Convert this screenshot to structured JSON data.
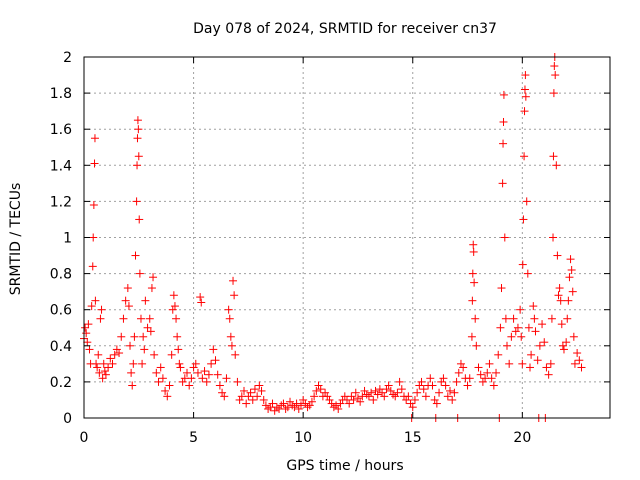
{
  "chart_data": {
    "type": "scatter",
    "title": "Day 078 of 2024, SRMTID for receiver cn37",
    "xlabel": "GPS time / hours",
    "ylabel": "SRMTID / TECUs",
    "xlim": [
      0,
      24
    ],
    "ylim": [
      0,
      2
    ],
    "x_ticks": [
      0,
      5,
      10,
      15,
      20
    ],
    "x_tick_labels": [
      "0",
      "5",
      "10",
      "15",
      "20"
    ],
    "y_ticks": [
      0,
      0.2,
      0.4,
      0.6,
      0.8,
      1.0,
      1.2,
      1.4,
      1.6,
      1.8,
      2.0
    ],
    "y_tick_labels": [
      "0",
      "0.2",
      "0.4",
      "0.6",
      "0.8",
      "1",
      "1.2",
      "1.4",
      "1.6",
      "1.8",
      "2"
    ],
    "grid": true,
    "marker": "+",
    "series": [
      {
        "name": "SRMTID",
        "color": "#ff0000",
        "points": [
          [
            0.0,
            0.44
          ],
          [
            0.05,
            0.5
          ],
          [
            0.1,
            0.47
          ],
          [
            0.15,
            0.42
          ],
          [
            0.2,
            0.52
          ],
          [
            0.25,
            0.38
          ],
          [
            0.3,
            0.3
          ],
          [
            0.35,
            0.62
          ],
          [
            0.4,
            0.84
          ],
          [
            0.42,
            1.0
          ],
          [
            0.45,
            1.18
          ],
          [
            0.48,
            1.41
          ],
          [
            0.5,
            1.55
          ],
          [
            0.52,
            0.65
          ],
          [
            0.55,
            0.3
          ],
          [
            0.6,
            0.28
          ],
          [
            0.65,
            0.35
          ],
          [
            0.7,
            0.25
          ],
          [
            0.75,
            0.55
          ],
          [
            0.8,
            0.6
          ],
          [
            0.85,
            0.22
          ],
          [
            0.9,
            0.3
          ],
          [
            0.95,
            0.26
          ],
          [
            1.0,
            0.24
          ],
          [
            1.1,
            0.28
          ],
          [
            1.2,
            0.33
          ],
          [
            1.3,
            0.3
          ],
          [
            1.4,
            0.35
          ],
          [
            1.5,
            0.38
          ],
          [
            1.6,
            0.36
          ],
          [
            1.7,
            0.45
          ],
          [
            1.8,
            0.55
          ],
          [
            1.9,
            0.65
          ],
          [
            2.0,
            0.72
          ],
          [
            2.05,
            0.62
          ],
          [
            2.1,
            0.4
          ],
          [
            2.15,
            0.25
          ],
          [
            2.2,
            0.18
          ],
          [
            2.25,
            0.3
          ],
          [
            2.3,
            0.45
          ],
          [
            2.35,
            0.9
          ],
          [
            2.4,
            1.2
          ],
          [
            2.42,
            1.4
          ],
          [
            2.44,
            1.55
          ],
          [
            2.46,
            1.65
          ],
          [
            2.48,
            1.6
          ],
          [
            2.5,
            1.45
          ],
          [
            2.52,
            1.1
          ],
          [
            2.55,
            0.8
          ],
          [
            2.6,
            0.55
          ],
          [
            2.65,
            0.3
          ],
          [
            2.7,
            0.45
          ],
          [
            2.75,
            0.38
          ],
          [
            2.8,
            0.65
          ],
          [
            2.9,
            0.5
          ],
          [
            3.0,
            0.55
          ],
          [
            3.05,
            0.48
          ],
          [
            3.1,
            0.72
          ],
          [
            3.15,
            0.78
          ],
          [
            3.2,
            0.35
          ],
          [
            3.3,
            0.25
          ],
          [
            3.4,
            0.2
          ],
          [
            3.5,
            0.28
          ],
          [
            3.6,
            0.22
          ],
          [
            3.7,
            0.15
          ],
          [
            3.8,
            0.12
          ],
          [
            3.9,
            0.18
          ],
          [
            4.0,
            0.35
          ],
          [
            4.05,
            0.6
          ],
          [
            4.1,
            0.68
          ],
          [
            4.15,
            0.62
          ],
          [
            4.2,
            0.55
          ],
          [
            4.25,
            0.45
          ],
          [
            4.3,
            0.38
          ],
          [
            4.35,
            0.3
          ],
          [
            4.4,
            0.28
          ],
          [
            4.5,
            0.2
          ],
          [
            4.6,
            0.22
          ],
          [
            4.7,
            0.25
          ],
          [
            4.8,
            0.18
          ],
          [
            4.9,
            0.22
          ],
          [
            5.0,
            0.28
          ],
          [
            5.1,
            0.3
          ],
          [
            5.2,
            0.25
          ],
          [
            5.3,
            0.67
          ],
          [
            5.35,
            0.64
          ],
          [
            5.4,
            0.22
          ],
          [
            5.5,
            0.26
          ],
          [
            5.6,
            0.2
          ],
          [
            5.7,
            0.24
          ],
          [
            5.8,
            0.3
          ],
          [
            5.9,
            0.38
          ],
          [
            6.0,
            0.32
          ],
          [
            6.1,
            0.24
          ],
          [
            6.2,
            0.18
          ],
          [
            6.3,
            0.14
          ],
          [
            6.4,
            0.12
          ],
          [
            6.5,
            0.22
          ],
          [
            6.6,
            0.6
          ],
          [
            6.65,
            0.55
          ],
          [
            6.7,
            0.45
          ],
          [
            6.75,
            0.4
          ],
          [
            6.8,
            0.76
          ],
          [
            6.85,
            0.68
          ],
          [
            6.9,
            0.35
          ],
          [
            7.0,
            0.2
          ],
          [
            7.1,
            0.1
          ],
          [
            7.2,
            0.12
          ],
          [
            7.3,
            0.15
          ],
          [
            7.4,
            0.08
          ],
          [
            7.5,
            0.12
          ],
          [
            7.6,
            0.14
          ],
          [
            7.7,
            0.1
          ],
          [
            7.8,
            0.16
          ],
          [
            7.9,
            0.12
          ],
          [
            8.0,
            0.18
          ],
          [
            8.1,
            0.15
          ],
          [
            8.2,
            0.1
          ],
          [
            8.3,
            0.07
          ],
          [
            8.4,
            0.05
          ],
          [
            8.5,
            0.06
          ],
          [
            8.6,
            0.08
          ],
          [
            8.7,
            0.04
          ],
          [
            8.8,
            0.06
          ],
          [
            8.9,
            0.05
          ],
          [
            9.0,
            0.07
          ],
          [
            9.1,
            0.08
          ],
          [
            9.2,
            0.05
          ],
          [
            9.3,
            0.06
          ],
          [
            9.4,
            0.09
          ],
          [
            9.5,
            0.07
          ],
          [
            9.6,
            0.06
          ],
          [
            9.7,
            0.08
          ],
          [
            9.8,
            0.05
          ],
          [
            9.9,
            0.07
          ],
          [
            10.0,
            0.1
          ],
          [
            10.1,
            0.08
          ],
          [
            10.2,
            0.06
          ],
          [
            10.3,
            0.07
          ],
          [
            10.4,
            0.09
          ],
          [
            10.5,
            0.12
          ],
          [
            10.6,
            0.15
          ],
          [
            10.7,
            0.18
          ],
          [
            10.8,
            0.16
          ],
          [
            10.9,
            0.12
          ],
          [
            11.0,
            0.14
          ],
          [
            11.1,
            0.12
          ],
          [
            11.2,
            0.1
          ],
          [
            11.3,
            0.08
          ],
          [
            11.4,
            0.06
          ],
          [
            11.5,
            0.07
          ],
          [
            11.6,
            0.05
          ],
          [
            11.7,
            0.08
          ],
          [
            11.8,
            0.1
          ],
          [
            11.9,
            0.12
          ],
          [
            12.0,
            0.1
          ],
          [
            12.1,
            0.08
          ],
          [
            12.2,
            0.12
          ],
          [
            12.3,
            0.1
          ],
          [
            12.4,
            0.14
          ],
          [
            12.5,
            0.11
          ],
          [
            12.6,
            0.09
          ],
          [
            12.7,
            0.12
          ],
          [
            12.8,
            0.15
          ],
          [
            12.9,
            0.13
          ],
          [
            13.0,
            0.12
          ],
          [
            13.1,
            0.14
          ],
          [
            13.2,
            0.1
          ],
          [
            13.3,
            0.15
          ],
          [
            13.4,
            0.13
          ],
          [
            13.5,
            0.16
          ],
          [
            13.6,
            0.14
          ],
          [
            13.7,
            0.12
          ],
          [
            13.8,
            0.16
          ],
          [
            13.9,
            0.18
          ],
          [
            14.0,
            0.15
          ],
          [
            14.1,
            0.13
          ],
          [
            14.2,
            0.12
          ],
          [
            14.3,
            0.14
          ],
          [
            14.4,
            0.2
          ],
          [
            14.5,
            0.16
          ],
          [
            14.6,
            0.12
          ],
          [
            14.7,
            0.1
          ],
          [
            14.8,
            0.12
          ],
          [
            14.9,
            0.08
          ],
          [
            14.95,
            0.0
          ],
          [
            15.0,
            0.06
          ],
          [
            15.1,
            0.1
          ],
          [
            15.2,
            0.14
          ],
          [
            15.3,
            0.18
          ],
          [
            15.4,
            0.2
          ],
          [
            15.5,
            0.16
          ],
          [
            15.6,
            0.12
          ],
          [
            15.7,
            0.18
          ],
          [
            15.8,
            0.22
          ],
          [
            15.9,
            0.18
          ],
          [
            16.0,
            0.1
          ],
          [
            16.05,
            0.0
          ],
          [
            16.1,
            0.08
          ],
          [
            16.2,
            0.14
          ],
          [
            16.3,
            0.2
          ],
          [
            16.4,
            0.22
          ],
          [
            16.5,
            0.18
          ],
          [
            16.6,
            0.12
          ],
          [
            16.7,
            0.15
          ],
          [
            16.8,
            0.1
          ],
          [
            16.9,
            0.14
          ],
          [
            17.0,
            0.2
          ],
          [
            17.05,
            0.0
          ],
          [
            17.1,
            0.25
          ],
          [
            17.2,
            0.3
          ],
          [
            17.3,
            0.28
          ],
          [
            17.4,
            0.22
          ],
          [
            17.5,
            0.18
          ],
          [
            17.6,
            0.22
          ],
          [
            17.7,
            0.45
          ],
          [
            17.72,
            0.65
          ],
          [
            17.74,
            0.8
          ],
          [
            17.76,
            0.96
          ],
          [
            17.78,
            0.92
          ],
          [
            17.8,
            0.75
          ],
          [
            17.85,
            0.55
          ],
          [
            17.9,
            0.4
          ],
          [
            18.0,
            0.28
          ],
          [
            18.1,
            0.24
          ],
          [
            18.2,
            0.2
          ],
          [
            18.3,
            0.22
          ],
          [
            18.4,
            0.25
          ],
          [
            18.5,
            0.3
          ],
          [
            18.6,
            0.22
          ],
          [
            18.7,
            0.18
          ],
          [
            18.8,
            0.25
          ],
          [
            18.9,
            0.35
          ],
          [
            18.95,
            0.0
          ],
          [
            19.0,
            0.5
          ],
          [
            19.05,
            0.72
          ],
          [
            19.1,
            1.3
          ],
          [
            19.12,
            1.52
          ],
          [
            19.14,
            1.64
          ],
          [
            19.16,
            1.79
          ],
          [
            19.2,
            1.0
          ],
          [
            19.25,
            0.55
          ],
          [
            19.3,
            0.4
          ],
          [
            19.4,
            0.3
          ],
          [
            19.5,
            0.45
          ],
          [
            19.6,
            0.55
          ],
          [
            19.7,
            0.48
          ],
          [
            19.8,
            0.5
          ],
          [
            19.9,
            0.6
          ],
          [
            19.95,
            0.45
          ],
          [
            20.0,
            0.3
          ],
          [
            20.02,
            0.85
          ],
          [
            20.05,
            1.1
          ],
          [
            20.08,
            1.45
          ],
          [
            20.1,
            1.7
          ],
          [
            20.12,
            1.82
          ],
          [
            20.14,
            1.9
          ],
          [
            20.16,
            1.78
          ],
          [
            20.2,
            1.2
          ],
          [
            20.25,
            0.8
          ],
          [
            20.3,
            0.5
          ],
          [
            20.35,
            0.28
          ],
          [
            20.4,
            0.35
          ],
          [
            20.5,
            0.62
          ],
          [
            20.55,
            0.55
          ],
          [
            20.6,
            0.48
          ],
          [
            20.7,
            0.32
          ],
          [
            20.75,
            0.0
          ],
          [
            20.8,
            0.4
          ],
          [
            20.9,
            0.52
          ],
          [
            21.0,
            0.42
          ],
          [
            21.05,
            0.0
          ],
          [
            21.1,
            0.28
          ],
          [
            21.2,
            0.24
          ],
          [
            21.3,
            0.3
          ],
          [
            21.35,
            0.55
          ],
          [
            21.4,
            1.0
          ],
          [
            21.42,
            1.45
          ],
          [
            21.44,
            1.8
          ],
          [
            21.46,
            1.95
          ],
          [
            21.48,
            2.0
          ],
          [
            21.5,
            1.9
          ],
          [
            21.55,
            1.4
          ],
          [
            21.6,
            0.9
          ],
          [
            21.65,
            0.68
          ],
          [
            21.7,
            0.72
          ],
          [
            21.75,
            0.65
          ],
          [
            21.8,
            0.52
          ],
          [
            21.85,
            0.4
          ],
          [
            21.9,
            0.38
          ],
          [
            22.0,
            0.42
          ],
          [
            22.05,
            0.55
          ],
          [
            22.1,
            0.65
          ],
          [
            22.15,
            0.78
          ],
          [
            22.2,
            0.88
          ],
          [
            22.25,
            0.82
          ],
          [
            22.3,
            0.7
          ],
          [
            22.35,
            0.45
          ],
          [
            22.4,
            0.3
          ],
          [
            22.5,
            0.36
          ],
          [
            22.6,
            0.32
          ],
          [
            22.7,
            0.28
          ]
        ]
      }
    ]
  }
}
